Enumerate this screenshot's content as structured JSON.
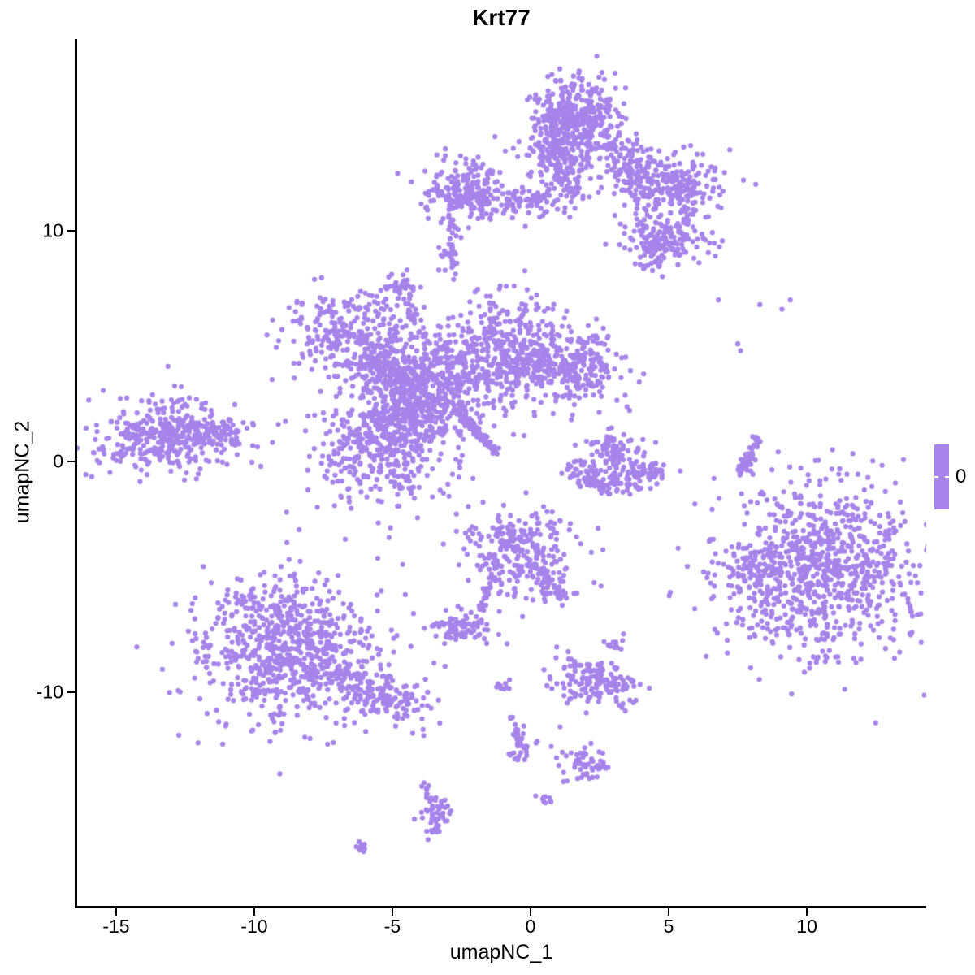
{
  "title": "Krt77",
  "chart_data": {
    "type": "scatter",
    "title": "Krt77",
    "xlabel": "umapNC_1",
    "ylabel": "umapNC_2",
    "xlim": [
      -16.41,
      14.32
    ],
    "ylim": [
      -19.26,
      18.31
    ],
    "x_ticks": [
      -15,
      -10,
      -5,
      0,
      5,
      10
    ],
    "y_ticks": [
      -10,
      0,
      10
    ],
    "grid": false,
    "background": "#FFFFFF",
    "axis_color": "#000000",
    "point_color": "#A684E9",
    "point_radius": 3.1,
    "legend": {
      "position": "right",
      "label": "0",
      "bar_color": "#A684E9"
    },
    "clusters": [
      {
        "name": "top-main-upper",
        "type": "gauss",
        "cx": 1.7,
        "cy": 14.6,
        "sx": 0.85,
        "sy": 1.0,
        "n": 420
      },
      {
        "name": "top-main-lower",
        "type": "gauss",
        "cx": 1.1,
        "cy": 12.6,
        "sx": 0.5,
        "sy": 0.9,
        "n": 150
      },
      {
        "name": "top-main-left-edge",
        "type": "gauss",
        "cx": 0.7,
        "cy": 14.3,
        "sx": 0.3,
        "sy": 0.9,
        "n": 60
      },
      {
        "name": "top-right-upper",
        "type": "gauss",
        "cx": 5.1,
        "cy": 11.9,
        "sx": 0.95,
        "sy": 0.65,
        "n": 240
      },
      {
        "name": "top-bridge",
        "type": "gauss",
        "cx": 3.8,
        "cy": 12.7,
        "sx": 0.55,
        "sy": 0.55,
        "n": 80
      },
      {
        "name": "top-right-lower",
        "type": "gauss",
        "cx": 4.9,
        "cy": 9.7,
        "sx": 0.8,
        "sy": 0.5,
        "n": 150
      },
      {
        "name": "top-right-tail",
        "type": "gauss",
        "cx": 4.5,
        "cy": 8.9,
        "sx": 0.35,
        "sy": 0.45,
        "n": 40
      },
      {
        "name": "top-band",
        "type": "line",
        "x1": -3.0,
        "y1": 11.4,
        "x2": 0.6,
        "y2": 11.3,
        "w": 0.22,
        "n": 110
      },
      {
        "name": "top-left-blob",
        "type": "gauss",
        "cx": -2.3,
        "cy": 11.7,
        "sx": 0.8,
        "sy": 0.7,
        "n": 200
      },
      {
        "name": "top-left-drip",
        "type": "line",
        "x1": -2.9,
        "y1": 10.6,
        "x2": -2.8,
        "y2": 9.2,
        "w": 0.15,
        "n": 16
      },
      {
        "name": "small-blob-upper",
        "type": "gauss",
        "cx": -2.95,
        "cy": 8.9,
        "sx": 0.22,
        "sy": 0.45,
        "n": 26
      },
      {
        "name": "small-blob-left",
        "type": "gauss",
        "cx": -4.65,
        "cy": 7.6,
        "sx": 0.3,
        "sy": 0.32,
        "n": 40
      },
      {
        "name": "chain-down",
        "type": "line",
        "x1": -4.45,
        "y1": 6.9,
        "x2": -3.85,
        "y2": 5.5,
        "w": 0.14,
        "n": 14
      },
      {
        "name": "central-topleft",
        "type": "gauss",
        "cx": -6.6,
        "cy": 5.5,
        "sx": 1.15,
        "sy": 0.95,
        "n": 270
      },
      {
        "name": "central-bridge",
        "type": "line",
        "x1": -6.0,
        "y1": 4.5,
        "x2": -4.4,
        "y2": 3.4,
        "w": 0.3,
        "n": 80
      },
      {
        "name": "central-core",
        "type": "gauss",
        "cx": -3.9,
        "cy": 3.3,
        "sx": 1.25,
        "sy": 1.15,
        "n": 650
      },
      {
        "name": "central-right-arm",
        "type": "gauss",
        "cx": -1.0,
        "cy": 4.8,
        "sx": 1.0,
        "sy": 1.2,
        "n": 360
      },
      {
        "name": "central-right-blob",
        "type": "gauss",
        "cx": 1.7,
        "cy": 4.1,
        "sx": 0.85,
        "sy": 0.9,
        "n": 210
      },
      {
        "name": "central-connector",
        "type": "gauss",
        "cx": 0.3,
        "cy": 4.3,
        "sx": 0.5,
        "sy": 0.5,
        "n": 60
      },
      {
        "name": "central-bottomleft",
        "type": "gauss",
        "cx": -5.4,
        "cy": 0.5,
        "sx": 1.25,
        "sy": 1.25,
        "n": 380
      },
      {
        "name": "central-neck",
        "type": "gauss",
        "cx": -4.5,
        "cy": 1.9,
        "sx": 0.6,
        "sy": 0.6,
        "n": 90
      },
      {
        "name": "thin-streak",
        "type": "line",
        "x1": -2.6,
        "y1": 2.15,
        "x2": -1.25,
        "y2": 0.4,
        "w": 0.07,
        "n": 90
      },
      {
        "name": "far-left",
        "type": "gauss",
        "cx": -13.1,
        "cy": 1.2,
        "sx": 1.35,
        "sy": 0.8,
        "n": 380
      },
      {
        "name": "far-left-tip",
        "type": "gauss",
        "cx": -11.5,
        "cy": 1.3,
        "sx": 0.6,
        "sy": 0.3,
        "n": 60
      },
      {
        "name": "crescent-arc",
        "type": "arc",
        "cx": 3.1,
        "cy": 0.7,
        "r": 1.7,
        "a1": 205,
        "a2": 335,
        "w": 0.3,
        "n": 150
      },
      {
        "name": "crescent-top",
        "type": "gauss",
        "cx": 2.9,
        "cy": 0.6,
        "sx": 0.35,
        "sy": 0.4,
        "n": 60
      },
      {
        "name": "crescent-fill",
        "type": "gauss",
        "cx": 3.2,
        "cy": 0.0,
        "sx": 0.75,
        "sy": 0.55,
        "n": 45
      },
      {
        "name": "right-streak",
        "type": "line",
        "x1": 8.25,
        "y1": 1.1,
        "x2": 7.6,
        "y2": -0.6,
        "w": 0.09,
        "n": 60
      },
      {
        "name": "right-big",
        "type": "gauss",
        "cx": 10.5,
        "cy": -4.6,
        "sx": 1.75,
        "sy": 1.9,
        "n": 880
      },
      {
        "name": "right-big-lobe",
        "type": "gauss",
        "cx": 8.1,
        "cy": -4.8,
        "sx": 0.4,
        "sy": 0.55,
        "n": 55
      },
      {
        "name": "bottom-left-main",
        "type": "gauss",
        "cx": -8.7,
        "cy": -8.2,
        "sx": 1.7,
        "sy": 1.6,
        "n": 800
      },
      {
        "name": "bottom-left-tail",
        "type": "line",
        "x1": -6.8,
        "y1": -9.4,
        "x2": -4.1,
        "y2": -10.7,
        "w": 0.42,
        "n": 150
      },
      {
        "name": "bottom-center",
        "type": "gauss",
        "cx": -0.45,
        "cy": -3.9,
        "sx": 1.0,
        "sy": 0.9,
        "n": 250
      },
      {
        "name": "bottom-center-arm",
        "type": "line",
        "x1": 0.35,
        "y1": -4.7,
        "x2": 1.05,
        "y2": -6.1,
        "w": 0.25,
        "n": 60
      },
      {
        "name": "dotted-diagonal",
        "type": "line",
        "x1": -1.25,
        "y1": -4.9,
        "x2": -1.95,
        "y2": -6.6,
        "w": 0.08,
        "n": 28
      },
      {
        "name": "small-left-blob",
        "type": "gauss",
        "cx": -2.65,
        "cy": -7.2,
        "sx": 0.5,
        "sy": 0.33,
        "n": 85
      },
      {
        "name": "pair-dots",
        "type": "points",
        "pts": [
          [
            2.3,
            -5.25
          ],
          [
            2.55,
            -5.4
          ],
          [
            -1.55,
            -7.3
          ],
          [
            -1.15,
            -7.5
          ],
          [
            -0.85,
            -7.9
          ]
        ]
      },
      {
        "name": "tiny-blob-right",
        "type": "gauss",
        "cx": 3.1,
        "cy": -7.9,
        "sx": 0.2,
        "sy": 0.14,
        "n": 12
      },
      {
        "name": "bottom-right-cluster",
        "type": "gauss",
        "cx": 2.3,
        "cy": -9.5,
        "sx": 0.72,
        "sy": 0.5,
        "n": 170,
        "angle": -20
      },
      {
        "name": "tiny-blob-1",
        "type": "gauss",
        "cx": -1.05,
        "cy": -9.75,
        "sx": 0.17,
        "sy": 0.17,
        "n": 10
      },
      {
        "name": "chain-vertical",
        "type": "line",
        "x1": -0.75,
        "y1": -10.9,
        "x2": -0.35,
        "y2": -12.2,
        "w": 0.1,
        "n": 18
      },
      {
        "name": "chain-blob",
        "type": "gauss",
        "cx": -0.3,
        "cy": -12.4,
        "sx": 0.24,
        "sy": 0.3,
        "n": 28
      },
      {
        "name": "trio-dots",
        "type": "points",
        "pts": [
          [
            0.2,
            -12.2
          ],
          [
            0.75,
            -12.35
          ],
          [
            1.15,
            -12.6
          ]
        ]
      },
      {
        "name": "triangle-blob",
        "type": "gauss",
        "cx": 2.0,
        "cy": -13.1,
        "sx": 0.45,
        "sy": 0.3,
        "n": 55
      },
      {
        "name": "tiny-blob-2",
        "type": "gauss",
        "cx": 0.5,
        "cy": -14.6,
        "sx": 0.17,
        "sy": 0.13,
        "n": 10
      },
      {
        "name": "south-chain",
        "type": "line",
        "x1": -3.75,
        "y1": -14.0,
        "x2": -3.45,
        "y2": -15.0,
        "w": 0.12,
        "n": 20
      },
      {
        "name": "south-blob",
        "type": "gauss",
        "cx": -3.45,
        "cy": -15.5,
        "sx": 0.26,
        "sy": 0.38,
        "n": 40
      },
      {
        "name": "tiny-blob-3",
        "type": "gauss",
        "cx": -6.1,
        "cy": -16.7,
        "sx": 0.18,
        "sy": 0.1,
        "n": 9
      },
      {
        "name": "sparse-ne-dots",
        "type": "points",
        "pts": [
          [
            6.8,
            7.0
          ],
          [
            8.3,
            6.8
          ],
          [
            9.1,
            6.6
          ],
          [
            9.4,
            7.0
          ],
          [
            7.5,
            5.1
          ],
          [
            7.6,
            4.8
          ]
        ]
      },
      {
        "name": "sparse-mid-dots",
        "type": "points",
        "pts": [
          [
            -4.4,
            6.5
          ],
          [
            -4.2,
            6.0
          ],
          [
            -4.05,
            5.6
          ],
          [
            8.0,
            0.3
          ],
          [
            8.05,
            -0.55
          ]
        ]
      }
    ]
  }
}
